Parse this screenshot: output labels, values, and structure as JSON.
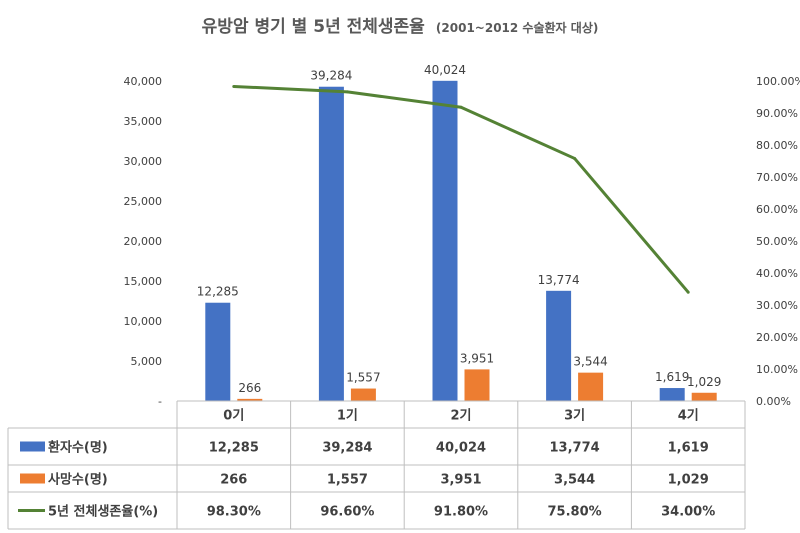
{
  "chart_data": {
    "type": "bar",
    "title": "유방암 병기 별 5년 전체생존율",
    "subtitle": "(2001~2012 수술환자 대상)",
    "categories": [
      "0기",
      "1기",
      "2기",
      "3기",
      "4기"
    ],
    "series": [
      {
        "name": "환자수(명)",
        "type": "bar",
        "axis": "left",
        "color": "#4472c4",
        "values": [
          12285,
          39284,
          40024,
          13774,
          1619
        ],
        "labels": [
          "12,285",
          "39,284",
          "40,024",
          "13,774",
          "1,619"
        ]
      },
      {
        "name": "사망수(명)",
        "type": "bar",
        "axis": "left",
        "color": "#ed7d31",
        "values": [
          266,
          1557,
          3951,
          3544,
          1029
        ],
        "labels": [
          "266",
          "1,557",
          "3,951",
          "3,544",
          "1,029"
        ]
      },
      {
        "name": "5년 전체생존율(%)",
        "type": "line",
        "axis": "right",
        "color": "#548235",
        "values": [
          98.3,
          96.6,
          91.8,
          75.8,
          34.0
        ],
        "labels": [
          "98.30%",
          "96.60%",
          "91.80%",
          "75.80%",
          "34.00%"
        ]
      }
    ],
    "y_left": {
      "min": 0,
      "max": 40000,
      "ticks": [
        "-",
        "5,000",
        "10,000",
        "15,000",
        "20,000",
        "25,000",
        "30,000",
        "35,000",
        "40,000"
      ]
    },
    "y_right": {
      "min": 0,
      "max": 100,
      "ticks": [
        "0.00%",
        "10.00%",
        "20.00%",
        "30.00%",
        "40.00%",
        "50.00%",
        "60.00%",
        "70.00%",
        "80.00%",
        "90.00%",
        "100.00%"
      ]
    },
    "legend": "data-table-below"
  }
}
